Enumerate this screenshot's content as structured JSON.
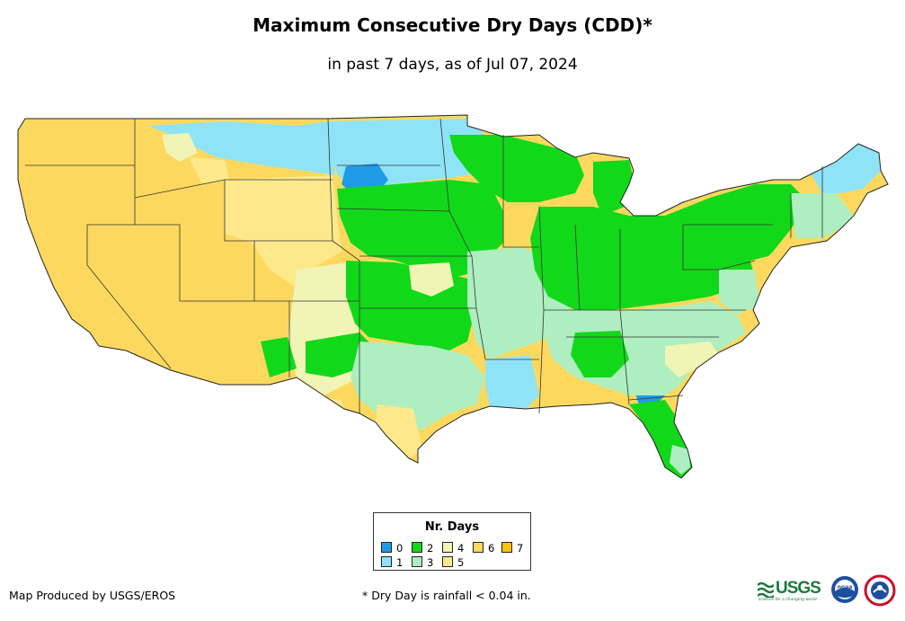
{
  "title": "Maximum Consecutive Dry Days (CDD)*",
  "subtitle": "in past 7 days, as of Jul 07, 2024",
  "legend": {
    "title": "Nr. Days",
    "items": [
      {
        "label": "0",
        "color": "#1e9be8"
      },
      {
        "label": "1",
        "color": "#8fe3f7"
      },
      {
        "label": "2",
        "color": "#12d81a"
      },
      {
        "label": "3",
        "color": "#aeeec0"
      },
      {
        "label": "4",
        "color": "#f0f4b4"
      },
      {
        "label": "5",
        "color": "#fde98c"
      },
      {
        "label": "6",
        "color": "#fcd95e"
      },
      {
        "label": "7",
        "color": "#fcc20a"
      }
    ]
  },
  "credit": "Map Produced by USGS/EROS",
  "footnote": "* Dry Day is rainfall < 0.04 in.",
  "logos": {
    "usgs_text": "USGS",
    "usgs_tagline": "science for a changing world",
    "noaa_text": "noaa"
  }
}
